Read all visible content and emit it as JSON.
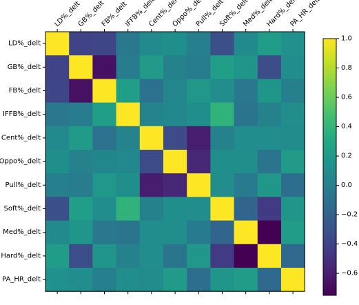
{
  "chart_data": {
    "type": "heatmap",
    "title": "",
    "labels": [
      "LD%_delt",
      "GB%_delt",
      "FB%_delt",
      "IFFB%_delt",
      "Cent%_delt",
      "Oppo%_delt",
      "Pull%_delt",
      "Soft%_delt",
      "Med%_delt",
      "Hard%_delt",
      "PA_HR_delt"
    ],
    "matrix": [
      [
        1.0,
        -0.4,
        -0.38,
        -0.05,
        0.08,
        0.12,
        0.0,
        -0.32,
        0.08,
        0.22,
        0.13
      ],
      [
        -0.4,
        1.0,
        -0.67,
        -0.02,
        0.2,
        0.02,
        -0.02,
        0.23,
        0.16,
        -0.33,
        0.1
      ],
      [
        -0.38,
        -0.67,
        1.0,
        0.23,
        -0.1,
        0.05,
        0.18,
        0.1,
        -0.05,
        0.16,
        0.0
      ],
      [
        -0.05,
        -0.02,
        0.23,
        1.0,
        0.03,
        0.07,
        0.12,
        0.38,
        -0.08,
        0.02,
        0.11
      ],
      [
        0.08,
        0.2,
        -0.1,
        0.03,
        1.0,
        -0.35,
        -0.6,
        0.02,
        0.1,
        0.1,
        0.09
      ],
      [
        0.12,
        0.02,
        0.05,
        0.07,
        -0.35,
        1.0,
        -0.55,
        0.12,
        0.11,
        -0.08,
        0.2
      ],
      [
        0.0,
        -0.02,
        0.18,
        0.12,
        -0.6,
        -0.55,
        1.0,
        0.1,
        -0.03,
        0.18,
        -0.12
      ],
      [
        -0.32,
        0.23,
        0.1,
        0.38,
        0.02,
        0.12,
        0.1,
        1.0,
        -0.18,
        -0.45,
        0.16
      ],
      [
        0.08,
        0.16,
        -0.05,
        -0.08,
        0.1,
        0.11,
        -0.03,
        -0.18,
        1.0,
        -0.75,
        0.22
      ],
      [
        0.22,
        -0.33,
        0.16,
        0.02,
        0.1,
        -0.08,
        0.18,
        -0.45,
        -0.75,
        1.0,
        -0.15
      ],
      [
        0.13,
        0.1,
        0.0,
        0.11,
        0.09,
        0.2,
        -0.12,
        0.16,
        0.22,
        -0.15,
        1.0
      ]
    ],
    "colormap": "viridis",
    "zlim": [
      -0.75,
      1.0
    ],
    "colorbar_ticks": [
      "1.0",
      "0.8",
      "0.6",
      "0.4",
      "0.2",
      "0.0",
      "−0.2",
      "−0.4",
      "−0.6"
    ],
    "colorbar_tick_values": [
      1.0,
      0.8,
      0.6,
      0.4,
      0.2,
      0.0,
      -0.2,
      -0.4,
      -0.6
    ],
    "legend": "none",
    "grid": false
  }
}
